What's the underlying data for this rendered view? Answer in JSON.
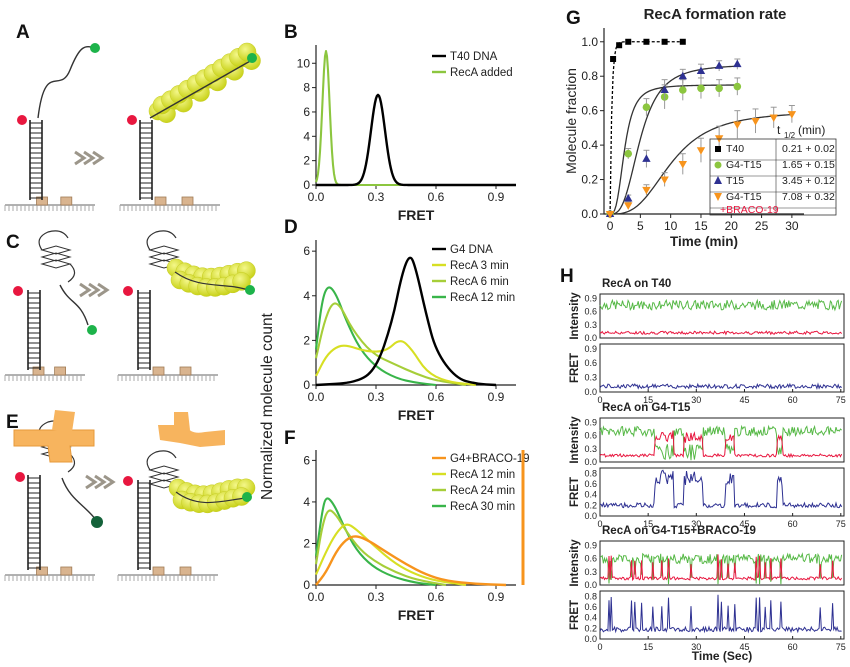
{
  "panels": {
    "A": "A",
    "B": "B",
    "C": "C",
    "D": "D",
    "E": "E",
    "F": "F",
    "G": "G",
    "H": "H"
  },
  "shared_ylabel": "Normalized molecule count",
  "colors": {
    "black": "#000000",
    "green": "#8cc63f",
    "dark_green": "#39b54a",
    "yellow": "#d7df23",
    "light_green": "#a6ce39",
    "orange": "#f7941d",
    "blue": "#2e3192",
    "red": "#e8173f",
    "recA_yellow": "#d9e021",
    "red_dot": "#e8173f"
  },
  "chart_data": [
    {
      "panel": "B",
      "type": "line",
      "xlabel": "FRET",
      "x_ticks": [
        "0.0",
        "0.3",
        "0.6",
        "0.9"
      ],
      "y_ticks": [
        "0",
        "2",
        "4",
        "6",
        "8",
        "10"
      ],
      "xlim": [
        0,
        1
      ],
      "ylim": [
        0,
        11.5
      ],
      "series": [
        {
          "name": "T40 DNA",
          "color": "#000000",
          "peak_x": 0.31,
          "peak_y": 7.4,
          "width": 0.035
        },
        {
          "name": "RecA added",
          "color": "#8cc63f",
          "peak_x": 0.05,
          "peak_y": 11.0,
          "width": 0.018
        }
      ]
    },
    {
      "panel": "D",
      "type": "line",
      "xlabel": "FRET",
      "x_ticks": [
        "0.0",
        "0.3",
        "0.6",
        "0.9"
      ],
      "y_ticks": [
        "0",
        "2",
        "4",
        "6"
      ],
      "xlim": [
        0,
        1
      ],
      "ylim": [
        0,
        6.5
      ],
      "series": [
        {
          "name": "G4 DNA",
          "color": "#000000",
          "points": [
            [
              0,
              0
            ],
            [
              0.2,
              0.1
            ],
            [
              0.3,
              0.7
            ],
            [
              0.38,
              2.8
            ],
            [
              0.43,
              5.0
            ],
            [
              0.47,
              5.9
            ],
            [
              0.5,
              5.2
            ],
            [
              0.55,
              3.2
            ],
            [
              0.6,
              1.5
            ],
            [
              0.7,
              0.3
            ],
            [
              0.8,
              0.05
            ],
            [
              0.9,
              0
            ]
          ]
        },
        {
          "name": "RecA 3 min",
          "color": "#d7df23",
          "points": [
            [
              0,
              0.4
            ],
            [
              0.05,
              1.3
            ],
            [
              0.1,
              1.7
            ],
            [
              0.15,
              1.8
            ],
            [
              0.25,
              1.5
            ],
            [
              0.35,
              1.5
            ],
            [
              0.42,
              2.1
            ],
            [
              0.48,
              1.6
            ],
            [
              0.55,
              0.6
            ],
            [
              0.65,
              0.15
            ],
            [
              0.8,
              0
            ]
          ]
        },
        {
          "name": "RecA 6 min",
          "color": "#a6ce39",
          "points": [
            [
              0,
              1.2
            ],
            [
              0.04,
              2.8
            ],
            [
              0.08,
              3.7
            ],
            [
              0.12,
              3.6
            ],
            [
              0.18,
              2.5
            ],
            [
              0.28,
              1.4
            ],
            [
              0.4,
              0.9
            ],
            [
              0.5,
              0.5
            ],
            [
              0.6,
              0.2
            ],
            [
              0.75,
              0
            ]
          ]
        },
        {
          "name": "RecA 12 min",
          "color": "#39b54a",
          "points": [
            [
              0,
              1.6
            ],
            [
              0.03,
              3.8
            ],
            [
              0.06,
              4.5
            ],
            [
              0.1,
              4.1
            ],
            [
              0.15,
              2.9
            ],
            [
              0.22,
              1.6
            ],
            [
              0.3,
              0.8
            ],
            [
              0.4,
              0.3
            ],
            [
              0.5,
              0.1
            ],
            [
              0.6,
              0
            ]
          ]
        }
      ]
    },
    {
      "panel": "F",
      "type": "line",
      "xlabel": "FRET",
      "x_ticks": [
        "0.0",
        "0.3",
        "0.6",
        "0.9"
      ],
      "y_ticks": [
        "0",
        "2",
        "4",
        "6"
      ],
      "xlim": [
        0,
        1
      ],
      "ylim": [
        0,
        6.5
      ],
      "series": [
        {
          "name": "G4+BRACO-19",
          "color": "#f7941d",
          "points": [
            [
              0,
              0
            ],
            [
              0.05,
              0.6
            ],
            [
              0.1,
              1.6
            ],
            [
              0.15,
              2.2
            ],
            [
              0.2,
              2.4
            ],
            [
              0.27,
              2.1
            ],
            [
              0.35,
              1.6
            ],
            [
              0.45,
              1.0
            ],
            [
              0.55,
              0.5
            ],
            [
              0.65,
              0.2
            ],
            [
              0.8,
              0.05
            ],
            [
              0.95,
              0
            ]
          ]
        },
        {
          "name": "RecA 12 min",
          "color": "#d7df23",
          "points": [
            [
              0,
              0.5
            ],
            [
              0.05,
              1.6
            ],
            [
              0.1,
              2.5
            ],
            [
              0.15,
              3.0
            ],
            [
              0.2,
              2.7
            ],
            [
              0.3,
              1.8
            ],
            [
              0.4,
              1.0
            ],
            [
              0.5,
              0.5
            ],
            [
              0.6,
              0.2
            ],
            [
              0.75,
              0
            ]
          ]
        },
        {
          "name": "RecA 24 min",
          "color": "#a6ce39",
          "points": [
            [
              0,
              1.0
            ],
            [
              0.03,
              2.8
            ],
            [
              0.06,
              3.7
            ],
            [
              0.1,
              3.4
            ],
            [
              0.15,
              2.6
            ],
            [
              0.22,
              1.7
            ],
            [
              0.3,
              1.1
            ],
            [
              0.4,
              0.6
            ],
            [
              0.5,
              0.25
            ],
            [
              0.65,
              0
            ]
          ]
        },
        {
          "name": "RecA 30 min",
          "color": "#39b54a",
          "points": [
            [
              0,
              1.4
            ],
            [
              0.03,
              3.5
            ],
            [
              0.05,
              4.3
            ],
            [
              0.09,
              3.9
            ],
            [
              0.14,
              2.8
            ],
            [
              0.2,
              1.7
            ],
            [
              0.28,
              0.9
            ],
            [
              0.38,
              0.4
            ],
            [
              0.5,
              0.1
            ],
            [
              0.6,
              0
            ]
          ]
        }
      ]
    },
    {
      "panel": "G",
      "type": "scatter",
      "title": "RecA formation rate",
      "xlabel": "Time (min)",
      "ylabel": "Molecule fraction",
      "x_ticks": [
        "0",
        "5",
        "10",
        "15",
        "20",
        "25",
        "30"
      ],
      "y_ticks": [
        "0.0",
        "0.2",
        "0.4",
        "0.6",
        "0.8",
        "1.0"
      ],
      "xlim": [
        -1,
        32
      ],
      "ylim": [
        0,
        1.08
      ],
      "legend_header": "t",
      "legend_header_sub": "1/2",
      "legend_header_unit": "(min)",
      "series": [
        {
          "name": "T40",
          "color": "#000000",
          "marker": "square",
          "t_half": "0.21 + 0.02",
          "points": [
            [
              0,
              0
            ],
            [
              0.5,
              0.9
            ],
            [
              1.5,
              0.98
            ],
            [
              3,
              1.0
            ],
            [
              6,
              1.0
            ],
            [
              9,
              1.0
            ],
            [
              12,
              1.0
            ]
          ],
          "err": [
            0,
            0,
            0,
            0,
            0,
            0,
            0
          ]
        },
        {
          "name": "G4-T15",
          "color": "#8cc63f",
          "marker": "circle",
          "t_half": "1.65 + 0.15",
          "points": [
            [
              0,
              0
            ],
            [
              3,
              0.35
            ],
            [
              6,
              0.62
            ],
            [
              9,
              0.68
            ],
            [
              12,
              0.72
            ],
            [
              15,
              0.73
            ],
            [
              18,
              0.73
            ],
            [
              21,
              0.74
            ]
          ],
          "err": [
            0,
            0.03,
            0.05,
            0.07,
            0.06,
            0.06,
            0.05,
            0.05
          ]
        },
        {
          "name": "T15",
          "color": "#2e3192",
          "marker": "triangle",
          "t_half": "3.45 + 0.12",
          "points": [
            [
              0,
              0
            ],
            [
              3,
              0.09
            ],
            [
              6,
              0.32
            ],
            [
              9,
              0.72
            ],
            [
              12,
              0.8
            ],
            [
              15,
              0.83
            ],
            [
              18,
              0.86
            ],
            [
              21,
              0.87
            ]
          ],
          "err": [
            0,
            0.02,
            0.05,
            0.06,
            0.04,
            0.04,
            0.03,
            0.03
          ]
        },
        {
          "name": "G4-T15",
          "name2": "+BRACO-19",
          "color": "#f7941d",
          "marker": "triangle-down",
          "t_half": "7.08 + 0.32",
          "points": [
            [
              0,
              0
            ],
            [
              3,
              0.05
            ],
            [
              6,
              0.14
            ],
            [
              9,
              0.2
            ],
            [
              12,
              0.29
            ],
            [
              15,
              0.37
            ],
            [
              18,
              0.44
            ],
            [
              21,
              0.52
            ],
            [
              24,
              0.54
            ],
            [
              27,
              0.56
            ],
            [
              30,
              0.58
            ]
          ],
          "err": [
            0,
            0.02,
            0.03,
            0.04,
            0.06,
            0.07,
            0.07,
            0.08,
            0.07,
            0.06,
            0.05
          ]
        }
      ],
      "fits": [
        {
          "color": "#000000",
          "tau": 0.3,
          "max": 1.0,
          "delay": 0
        },
        {
          "color": "#333333",
          "tau": 2.4,
          "max": 0.75,
          "delay": 0
        },
        {
          "color": "#333333",
          "tau": 5.0,
          "max": 0.87,
          "delay": 0
        },
        {
          "color": "#333333",
          "tau": 10.2,
          "max": 0.6,
          "delay": 0
        }
      ]
    },
    {
      "panel": "H",
      "type": "line",
      "xlabel": "Time (Sec)",
      "x_ticks": [
        "0",
        "15",
        "30",
        "45",
        "60",
        "75"
      ],
      "traces": [
        {
          "title": "RecA on T40",
          "intensity_ticks": [
            "0.0",
            "0.3",
            "0.6",
            "0.9"
          ],
          "fret_ticks": [
            "0.0",
            "0.3",
            "0.6",
            "0.9"
          ],
          "mode": "stable",
          "green_level": 0.75,
          "red_level": 0.12,
          "fret_level": 0.12
        },
        {
          "title": "RecA on G4-T15",
          "intensity_ticks": [
            "0.0",
            "0.3",
            "0.6",
            "0.9"
          ],
          "fret_ticks": [
            "0.0",
            "0.2",
            "0.4",
            "0.6",
            "0.8"
          ],
          "mode": "dynamic",
          "green_level": 0.7,
          "red_level": 0.15,
          "fret_level": 0.2
        },
        {
          "title": "RecA on G4-T15+BRACO-19",
          "intensity_ticks": [
            "0.0",
            "0.3",
            "0.6",
            "0.9"
          ],
          "fret_ticks": [
            "0.0",
            "0.2",
            "0.4",
            "0.6",
            "0.8"
          ],
          "mode": "spiky",
          "green_level": 0.6,
          "red_level": 0.15,
          "fret_level": 0.18
        }
      ],
      "intensity_label": "Intensity",
      "fret_label": "FRET"
    }
  ]
}
